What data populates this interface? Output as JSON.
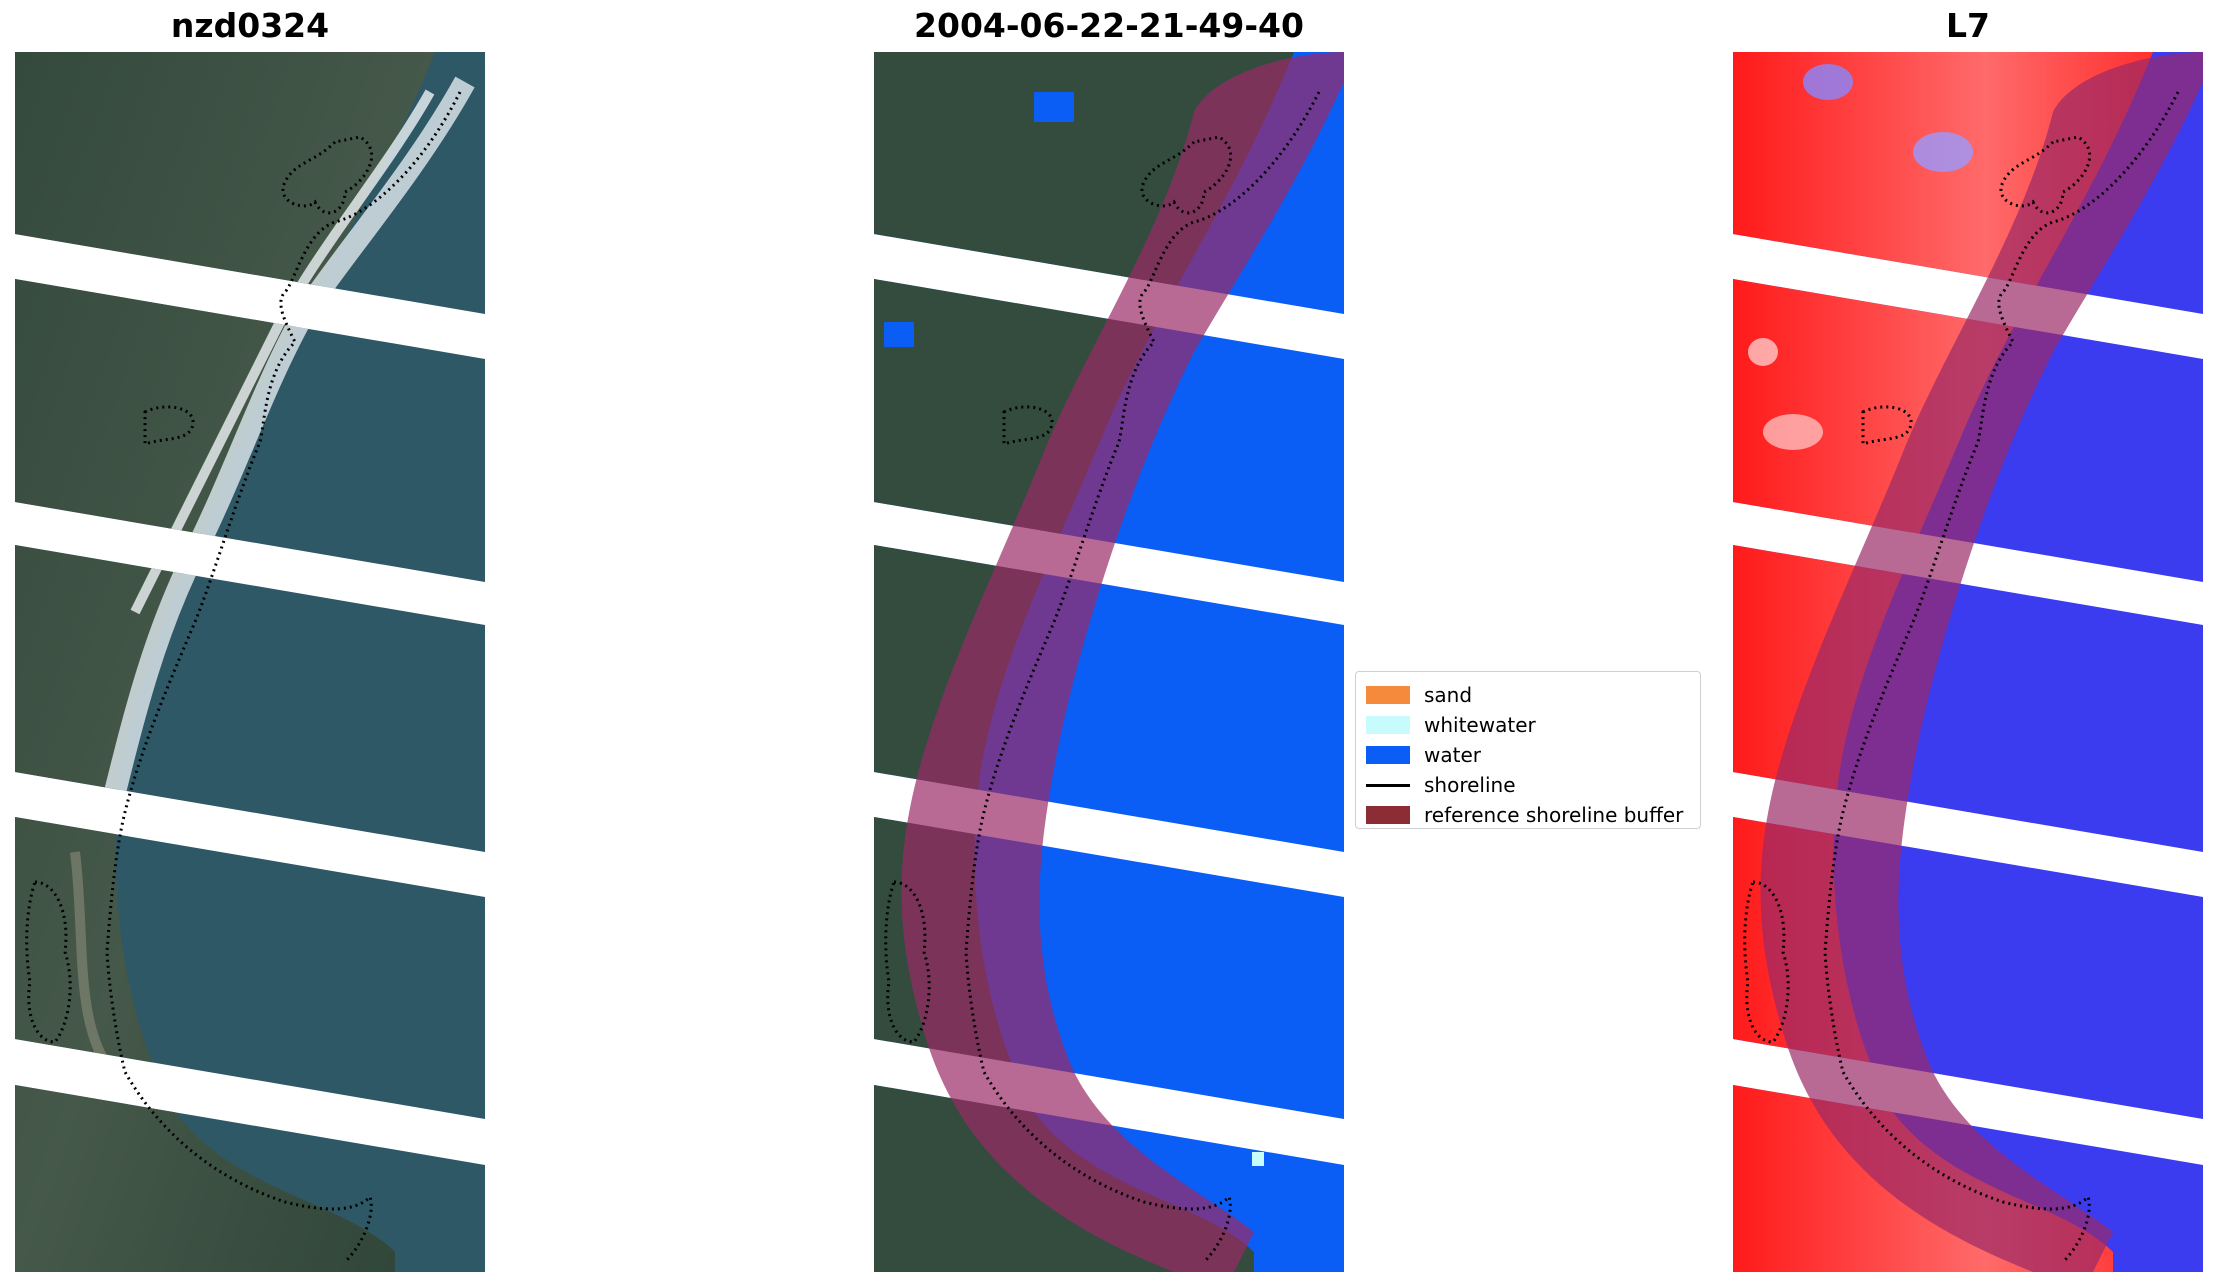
{
  "titles": {
    "left": "nzd0324",
    "middle": "2004-06-22-21-49-40",
    "right": "L7"
  },
  "legend": {
    "items": [
      {
        "label": "sand",
        "color": "#f58a3c",
        "kind": "patch"
      },
      {
        "label": "whitewater",
        "color": "#c8fcfc",
        "kind": "patch"
      },
      {
        "label": "water",
        "color": "#0a5ef5",
        "kind": "patch"
      },
      {
        "label": "shoreline",
        "color": "#000000",
        "kind": "line"
      },
      {
        "label": "reference shoreline buffer",
        "color": "#8c2c34",
        "kind": "patch"
      }
    ]
  },
  "colors": {
    "ocean_rgb": "#2d5560",
    "land_rgb": "#3a5242",
    "whitewater_rgb": "#dfe8ec",
    "water_class": "#0a5ef5",
    "buffer_overlay": "#9a2a66",
    "index_land": "#ff2020",
    "index_water": "#3a3aef"
  }
}
